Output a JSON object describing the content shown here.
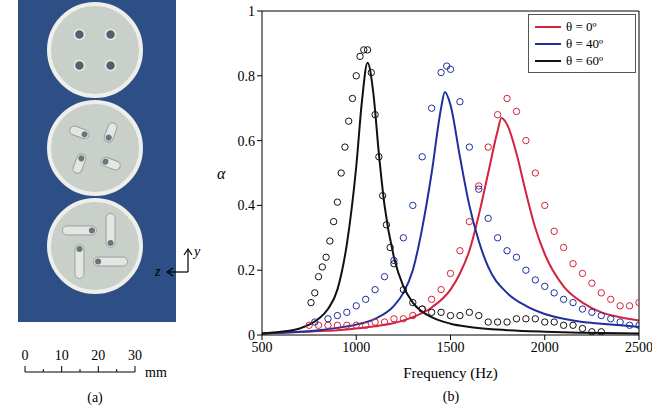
{
  "photo": {
    "panel_label": "(a)",
    "axes": {
      "vertical": "y",
      "horizontal": "z"
    },
    "scale": {
      "ticks": [
        0,
        10,
        20,
        30
      ],
      "unit": "mm"
    }
  },
  "chart_data": {
    "type": "line",
    "panel_label": "(b)",
    "xlabel": "Frequency (Hz)",
    "ylabel": "α",
    "xlim": [
      500,
      2500
    ],
    "xticks": [
      500,
      1000,
      1500,
      2000,
      2500
    ],
    "ylim": [
      0,
      1
    ],
    "yticks": [
      0,
      0.2,
      0.4,
      0.6,
      0.8,
      1
    ],
    "grid": false,
    "legend": "upper right",
    "series": [
      {
        "name": "θ = 0º",
        "color": "#d2233f",
        "type": "line",
        "line_style": "solid",
        "x": [
          500,
          600,
          700,
          800,
          900,
          1000,
          1100,
          1200,
          1300,
          1400,
          1500,
          1550,
          1600,
          1650,
          1700,
          1750,
          1770,
          1800,
          1850,
          1900,
          1950,
          2000,
          2100,
          2200,
          2300,
          2400,
          2500
        ],
        "values": [
          0.005,
          0.007,
          0.009,
          0.012,
          0.015,
          0.02,
          0.027,
          0.037,
          0.055,
          0.085,
          0.14,
          0.19,
          0.26,
          0.37,
          0.5,
          0.63,
          0.67,
          0.65,
          0.56,
          0.44,
          0.33,
          0.25,
          0.15,
          0.1,
          0.07,
          0.055,
          0.045
        ]
      },
      {
        "name": "θ = 40º",
        "color": "#1f2f9e",
        "type": "line",
        "line_style": "solid",
        "x": [
          500,
          600,
          700,
          800,
          900,
          1000,
          1100,
          1200,
          1250,
          1300,
          1350,
          1400,
          1450,
          1470,
          1500,
          1550,
          1600,
          1650,
          1700,
          1800,
          1900,
          2000,
          2100,
          2200,
          2300,
          2400,
          2500
        ],
        "values": [
          0.005,
          0.007,
          0.01,
          0.015,
          0.022,
          0.032,
          0.05,
          0.09,
          0.13,
          0.2,
          0.33,
          0.5,
          0.7,
          0.75,
          0.71,
          0.55,
          0.4,
          0.29,
          0.21,
          0.13,
          0.09,
          0.065,
          0.05,
          0.04,
          0.035,
          0.03,
          0.025
        ]
      },
      {
        "name": "θ = 60º",
        "color": "#111111",
        "type": "line",
        "line_style": "solid",
        "x": [
          500,
          600,
          700,
          800,
          850,
          900,
          950,
          1000,
          1030,
          1060,
          1090,
          1120,
          1150,
          1200,
          1250,
          1300,
          1400,
          1500,
          1600,
          1800,
          2000,
          2200,
          2500
        ],
        "values": [
          0.005,
          0.01,
          0.02,
          0.05,
          0.08,
          0.14,
          0.28,
          0.52,
          0.72,
          0.84,
          0.75,
          0.56,
          0.4,
          0.24,
          0.15,
          0.1,
          0.055,
          0.035,
          0.025,
          0.015,
          0.01,
          0.007,
          0.005
        ]
      },
      {
        "color": "#d2233f",
        "type": "scatter",
        "marker": "circle",
        "x": [
          750,
          800,
          850,
          900,
          950,
          1000,
          1050,
          1100,
          1150,
          1200,
          1250,
          1300,
          1350,
          1400,
          1450,
          1500,
          1550,
          1600,
          1650,
          1700,
          1750,
          1800,
          1850,
          1900,
          1950,
          2000,
          2050,
          2100,
          2150,
          2200,
          2250,
          2300,
          2350,
          2400,
          2450,
          2500
        ],
        "values": [
          0.03,
          0.03,
          0.03,
          0.03,
          0.03,
          0.03,
          0.03,
          0.04,
          0.04,
          0.05,
          0.05,
          0.06,
          0.08,
          0.11,
          0.14,
          0.19,
          0.26,
          0.35,
          0.46,
          0.58,
          0.68,
          0.73,
          0.69,
          0.6,
          0.5,
          0.4,
          0.32,
          0.27,
          0.22,
          0.19,
          0.16,
          0.13,
          0.11,
          0.09,
          0.09,
          0.1
        ]
      },
      {
        "color": "#1f2f9e",
        "type": "scatter",
        "marker": "circle",
        "x": [
          780,
          850,
          900,
          950,
          1000,
          1050,
          1100,
          1150,
          1200,
          1250,
          1300,
          1350,
          1400,
          1450,
          1480,
          1500,
          1550,
          1600,
          1650,
          1700,
          1750,
          1800,
          1850,
          1900,
          1950,
          2000,
          2050,
          2100,
          2150,
          2200,
          2250,
          2300,
          2350,
          2400,
          2450,
          2500
        ],
        "values": [
          0.04,
          0.05,
          0.06,
          0.07,
          0.09,
          0.11,
          0.14,
          0.18,
          0.23,
          0.3,
          0.4,
          0.55,
          0.7,
          0.81,
          0.83,
          0.82,
          0.72,
          0.58,
          0.45,
          0.36,
          0.3,
          0.26,
          0.24,
          0.2,
          0.17,
          0.15,
          0.13,
          0.11,
          0.1,
          0.08,
          0.07,
          0.06,
          0.05,
          0.04,
          0.03,
          0.03
        ]
      },
      {
        "color": "#111111",
        "type": "scatter",
        "marker": "circle",
        "x": [
          760,
          780,
          800,
          820,
          840,
          860,
          880,
          900,
          920,
          940,
          960,
          980,
          1000,
          1020,
          1040,
          1060,
          1080,
          1100,
          1120,
          1140,
          1160,
          1180,
          1200,
          1250,
          1300,
          1350,
          1400,
          1450,
          1500,
          1550,
          1600,
          1650,
          1700,
          1750,
          1800,
          1850,
          1900,
          1950,
          2000,
          2050,
          2100,
          2150,
          2200,
          2250,
          2300
        ],
        "values": [
          0.1,
          0.13,
          0.18,
          0.21,
          0.24,
          0.29,
          0.35,
          0.41,
          0.5,
          0.58,
          0.66,
          0.73,
          0.8,
          0.86,
          0.88,
          0.88,
          0.81,
          0.68,
          0.55,
          0.43,
          0.34,
          0.27,
          0.22,
          0.14,
          0.1,
          0.08,
          0.07,
          0.07,
          0.06,
          0.06,
          0.07,
          0.06,
          0.04,
          0.04,
          0.04,
          0.05,
          0.05,
          0.05,
          0.04,
          0.04,
          0.03,
          0.03,
          0.02,
          0.01,
          0.01
        ]
      }
    ]
  }
}
